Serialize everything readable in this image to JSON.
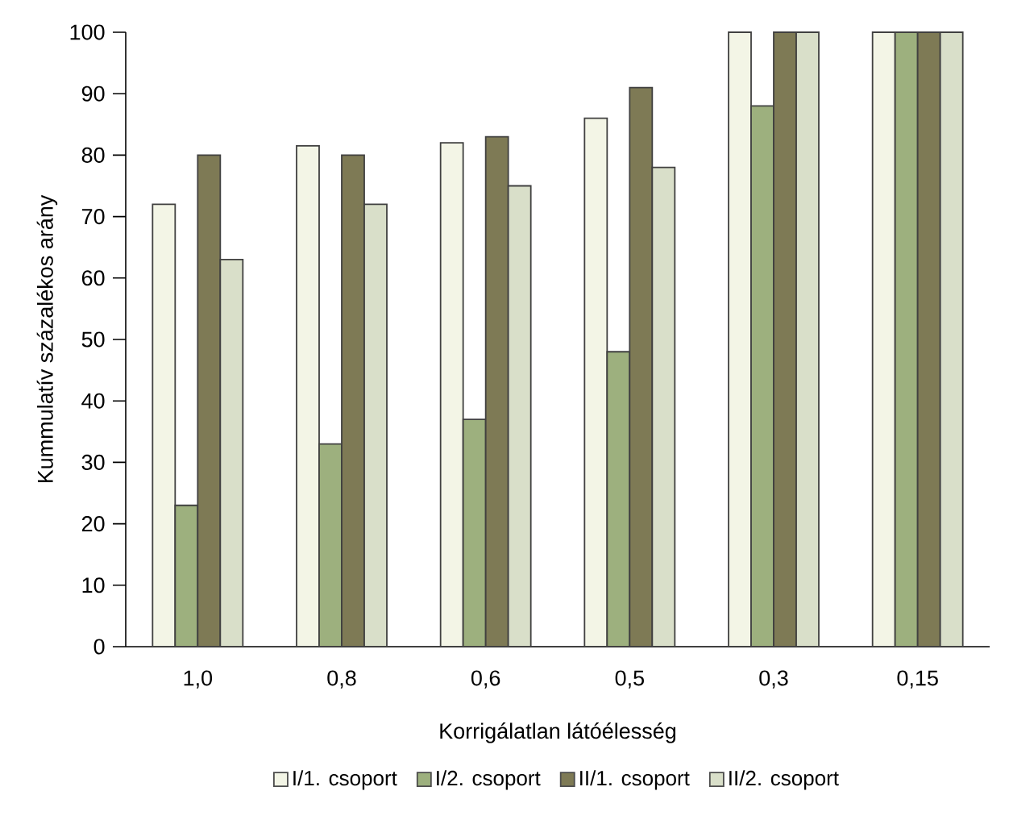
{
  "chart_data": {
    "type": "bar",
    "categories": [
      "1,0",
      "0,8",
      "0,6",
      "0,5",
      "0,3",
      "0,15"
    ],
    "xlabel": "Korrigálatlan látóélesség",
    "ylabel": "Kummulatív százalékos arány",
    "series": [
      {
        "name": "I/1. csoport",
        "color": "#f3f5e6",
        "values": [
          72,
          81.5,
          82,
          86,
          100,
          100
        ]
      },
      {
        "name": "I/2. csoport",
        "color": "#9db07e",
        "values": [
          23,
          33,
          37,
          48,
          88,
          100
        ]
      },
      {
        "name": "II/1. csoport",
        "color": "#7e7a55",
        "values": [
          80,
          80,
          83,
          91,
          100,
          100
        ]
      },
      {
        "name": "II/2. csoport",
        "color": "#d9dfc9",
        "values": [
          63,
          72,
          75,
          78,
          100,
          100
        ]
      }
    ],
    "ylim": [
      0,
      100
    ],
    "yticks": [
      0,
      10,
      20,
      30,
      40,
      50,
      60,
      70,
      80,
      90,
      100
    ],
    "legend": "bottom"
  }
}
